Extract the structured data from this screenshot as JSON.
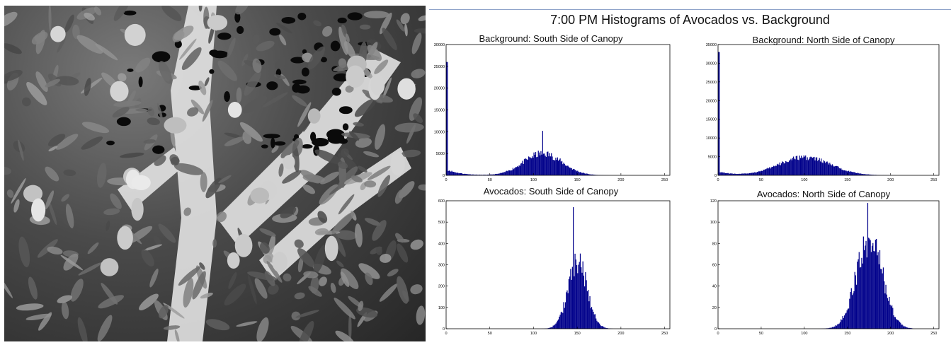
{
  "figure": {
    "title": "7:00 PM Histograms of Avocados vs. Background"
  },
  "photo": {
    "description": "Grayscale night image of an avocado tree canopy",
    "kind": "grayscale-photo"
  },
  "colors": {
    "bar": "#00008b",
    "axis": "#000000",
    "title": "#111111"
  },
  "chart_data": [
    {
      "type": "bar",
      "title": "Background: South Side of Canopy",
      "xlim": [
        0,
        256
      ],
      "ylim": [
        0,
        30000
      ],
      "xticks": [
        0,
        50,
        100,
        150,
        200,
        250
      ],
      "yticks": [
        0,
        5000,
        10000,
        15000,
        20000,
        25000,
        30000
      ],
      "peaks": [
        {
          "x": 1,
          "y": 26000
        },
        {
          "x": 110,
          "y": 10200
        }
      ],
      "shape": {
        "spike0": 26000,
        "spike1": 3000,
        "floor": 1200,
        "mean": 110,
        "sd": 22,
        "height": 5000,
        "start": 2,
        "end": 210,
        "noise": 0.35
      }
    },
    {
      "type": "bar",
      "title": "Background: North Side of Canopy",
      "xlim": [
        0,
        256
      ],
      "ylim": [
        0,
        35000
      ],
      "xticks": [
        0,
        50,
        100,
        150,
        200,
        250
      ],
      "yticks": [
        0,
        5000,
        10000,
        15000,
        20000,
        25000,
        30000,
        35000
      ],
      "peaks": [
        {
          "x": 1,
          "y": 33000
        },
        {
          "x": 100,
          "y": 5000
        }
      ],
      "shape": {
        "spike0": 33000,
        "spike1": 2500,
        "floor": 900,
        "mean": 100,
        "sd": 30,
        "height": 4800,
        "start": 2,
        "end": 240,
        "noise": 0.3
      }
    },
    {
      "type": "bar",
      "title": "Avocados: South Side of Canopy",
      "xlim": [
        0,
        256
      ],
      "ylim": [
        0,
        600
      ],
      "xticks": [
        0,
        50,
        100,
        150,
        200,
        250
      ],
      "yticks": [
        0,
        100,
        200,
        300,
        400,
        500,
        600
      ],
      "peaks": [
        {
          "x": 145,
          "y": 570
        }
      ],
      "shape": {
        "spike0": 0,
        "spike1": 0,
        "floor": 0,
        "mean": 150,
        "sd": 11,
        "height": 310,
        "start": 108,
        "end": 190,
        "noise": 0.45
      }
    },
    {
      "type": "bar",
      "title": "Avocados: North Side of Canopy",
      "xlim": [
        0,
        256
      ],
      "ylim": [
        0,
        120
      ],
      "xticks": [
        0,
        50,
        100,
        150,
        200,
        250
      ],
      "yticks": [
        0,
        20,
        40,
        60,
        80,
        100,
        120
      ],
      "peaks": [
        {
          "x": 173,
          "y": 118
        }
      ],
      "shape": {
        "spike0": 0,
        "spike1": 0,
        "floor": 0,
        "mean": 175,
        "sd": 15,
        "height": 85,
        "start": 80,
        "end": 225,
        "noise": 0.4
      }
    }
  ]
}
